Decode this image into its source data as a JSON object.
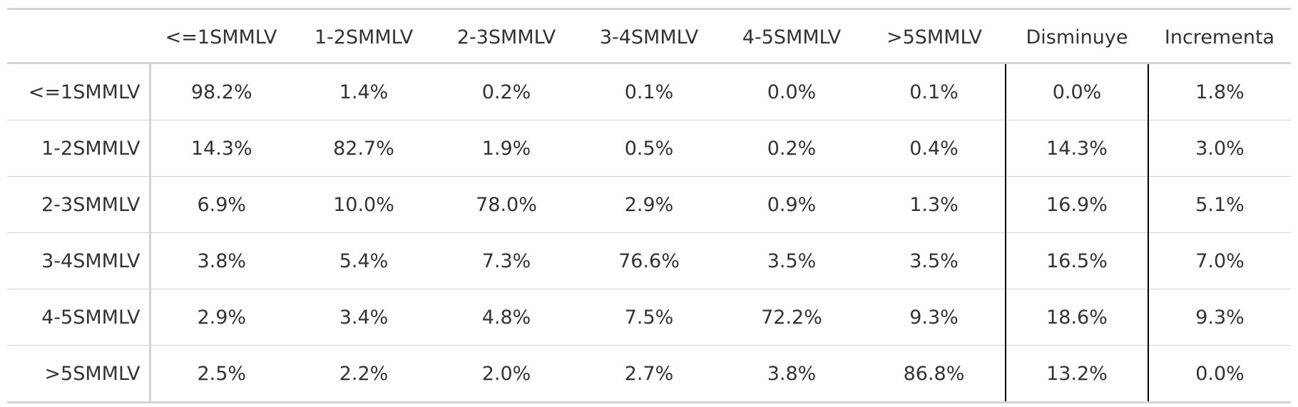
{
  "chart_data": {
    "type": "table",
    "columns": [
      "",
      "<=1SMMLV",
      "1-2SMMLV",
      "2-3SMMLV",
      "3-4SMMLV",
      "4-5SMMLV",
      ">5SMMLV",
      "Disminuye",
      "Incrementa"
    ],
    "rows": [
      {
        "label": "<=1SMMLV",
        "values": [
          "98.2%",
          "1.4%",
          "0.2%",
          "0.1%",
          "0.0%",
          "0.1%",
          "0.0%",
          "1.8%"
        ]
      },
      {
        "label": "1-2SMMLV",
        "values": [
          "14.3%",
          "82.7%",
          "1.9%",
          "0.5%",
          "0.2%",
          "0.4%",
          "14.3%",
          "3.0%"
        ]
      },
      {
        "label": "2-3SMMLV",
        "values": [
          "6.9%",
          "10.0%",
          "78.0%",
          "2.9%",
          "0.9%",
          "1.3%",
          "16.9%",
          "5.1%"
        ]
      },
      {
        "label": "3-4SMMLV",
        "values": [
          "3.8%",
          "5.4%",
          "7.3%",
          "76.6%",
          "3.5%",
          "3.5%",
          "16.5%",
          "7.0%"
        ]
      },
      {
        "label": "4-5SMMLV",
        "values": [
          "2.9%",
          "3.4%",
          "4.8%",
          "7.5%",
          "72.2%",
          "9.3%",
          "18.6%",
          "9.3%"
        ]
      },
      {
        "label": ">5SMMLV",
        "values": [
          "2.5%",
          "2.2%",
          "2.0%",
          "2.7%",
          "3.8%",
          "86.8%",
          "13.2%",
          "0.0%"
        ]
      }
    ]
  }
}
